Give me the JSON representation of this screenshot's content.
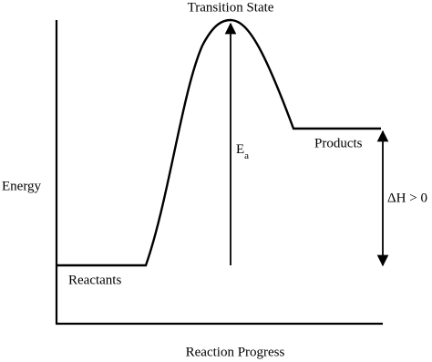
{
  "title": "Transition State",
  "labels": {
    "reactants": "Reactants",
    "products": "Products",
    "activation_energy": {
      "symbol": "E",
      "subscript": "a"
    },
    "enthalpy_change": "ΔH > 0"
  },
  "axes": {
    "y_label": "Energy",
    "x_label": "Reaction Progress"
  }
}
